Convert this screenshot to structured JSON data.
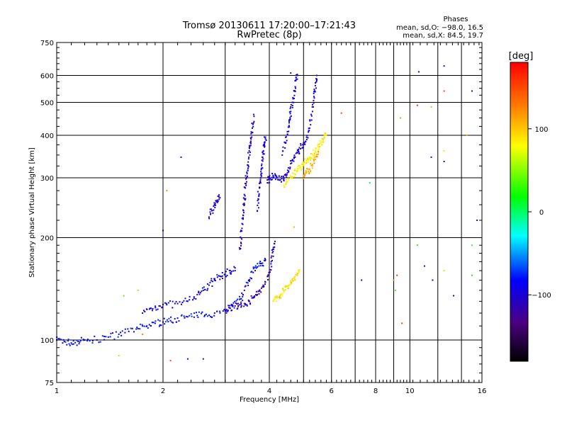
{
  "chart_data": {
    "type": "scatter",
    "title": "Tromsø 20130611 17:20:00–17:21:43",
    "subtitle": "RwPretec (8p)",
    "xlabel": "Frequency [MHz]",
    "ylabel": "Stationary phase Virtual Height [km]",
    "x_scale": "log",
    "y_scale": "log",
    "xlim": [
      1,
      16
    ],
    "ylim": [
      75,
      750
    ],
    "grid": true,
    "x_ticks": [
      "1",
      "2",
      "4",
      "6",
      "8",
      "10",
      "16"
    ],
    "y_ticks": [
      "75",
      "100",
      "200",
      "300",
      "400",
      "500",
      "600",
      "750"
    ],
    "phases": {
      "heading": "Phases",
      "line_o": "mean, sd,O: −98.0, 16.5",
      "line_x": "mean, sd,X:  84.5, 19.7"
    },
    "colorbar": {
      "label": "[deg]",
      "min": -180,
      "max": 180,
      "ticks": [
        "100",
        "0",
        "−100"
      ]
    },
    "traces": [
      {
        "phase": -85,
        "points": [
          [
            1.0,
            100
          ],
          [
            1.05,
            99
          ],
          [
            1.1,
            98
          ],
          [
            1.15,
            99
          ],
          [
            1.2,
            100
          ],
          [
            1.3,
            100
          ],
          [
            1.4,
            102
          ],
          [
            1.5,
            104
          ],
          [
            1.6,
            106
          ],
          [
            1.7,
            108
          ],
          [
            1.8,
            110
          ],
          [
            1.9,
            112
          ],
          [
            2.0,
            113
          ],
          [
            2.1,
            114
          ],
          [
            2.2,
            116
          ],
          [
            2.35,
            117
          ],
          [
            2.5,
            118
          ],
          [
            2.65,
            119
          ],
          [
            2.8,
            120
          ],
          [
            3.0,
            122
          ],
          [
            3.15,
            126
          ],
          [
            3.3,
            132
          ],
          [
            3.4,
            140
          ],
          [
            3.5,
            150
          ],
          [
            3.6,
            158
          ],
          [
            3.7,
            164
          ],
          [
            3.8,
            168
          ],
          [
            3.9,
            172
          ]
        ]
      },
      {
        "phase": -90,
        "points": [
          [
            1.75,
            120
          ],
          [
            1.85,
            124
          ],
          [
            1.95,
            126
          ],
          [
            2.05,
            127
          ],
          [
            2.2,
            128
          ],
          [
            2.35,
            130
          ],
          [
            2.5,
            136
          ],
          [
            2.6,
            140
          ],
          [
            2.7,
            145
          ],
          [
            2.8,
            150
          ],
          [
            2.9,
            154
          ],
          [
            3.0,
            156
          ],
          [
            3.1,
            160
          ],
          [
            3.2,
            163
          ]
        ]
      },
      {
        "phase": -108,
        "points": [
          [
            3.0,
            122
          ],
          [
            3.1,
            124
          ],
          [
            3.2,
            126
          ],
          [
            3.3,
            127
          ],
          [
            3.4,
            128
          ],
          [
            3.5,
            130
          ],
          [
            3.6,
            133
          ],
          [
            3.7,
            136
          ],
          [
            3.8,
            142
          ],
          [
            3.9,
            148
          ],
          [
            4.0,
            158
          ],
          [
            4.05,
            170
          ],
          [
            4.1,
            182
          ],
          [
            4.15,
            195
          ]
        ]
      },
      {
        "phase": -105,
        "points": [
          [
            3.3,
            185
          ],
          [
            3.32,
            200
          ],
          [
            3.35,
            220
          ],
          [
            3.38,
            240
          ],
          [
            3.4,
            260
          ],
          [
            3.42,
            280
          ],
          [
            3.45,
            300
          ],
          [
            3.48,
            320
          ],
          [
            3.5,
            345
          ],
          [
            3.52,
            370
          ],
          [
            3.55,
            390
          ],
          [
            3.58,
            420
          ],
          [
            3.62,
            455
          ]
        ]
      },
      {
        "phase": -100,
        "points": [
          [
            3.7,
            240
          ],
          [
            3.72,
            260
          ],
          [
            3.75,
            280
          ],
          [
            3.78,
            300
          ],
          [
            3.8,
            320
          ],
          [
            3.82,
            345
          ],
          [
            3.85,
            360
          ],
          [
            3.88,
            380
          ],
          [
            3.9,
            395
          ]
        ]
      },
      {
        "phase": -98,
        "points": [
          [
            3.95,
            290
          ],
          [
            4.0,
            300
          ],
          [
            4.1,
            305
          ],
          [
            4.2,
            300
          ],
          [
            4.3,
            296
          ],
          [
            4.4,
            300
          ],
          [
            4.5,
            310
          ],
          [
            4.6,
            330
          ],
          [
            4.7,
            345
          ],
          [
            4.8,
            355
          ],
          [
            4.9,
            365
          ],
          [
            5.0,
            380
          ],
          [
            5.1,
            395
          ],
          [
            5.2,
            420
          ],
          [
            5.3,
            470
          ],
          [
            5.35,
            520
          ],
          [
            5.4,
            560
          ],
          [
            5.45,
            600
          ]
        ]
      },
      {
        "phase": -95,
        "points": [
          [
            4.35,
            350
          ],
          [
            4.45,
            380
          ],
          [
            4.5,
            410
          ],
          [
            4.55,
            440
          ],
          [
            4.6,
            470
          ],
          [
            4.65,
            500
          ],
          [
            4.7,
            540
          ],
          [
            4.75,
            580
          ],
          [
            4.8,
            600
          ]
        ]
      },
      {
        "phase": -102,
        "points": [
          [
            2.7,
            230
          ],
          [
            2.75,
            240
          ],
          [
            2.8,
            250
          ],
          [
            2.85,
            258
          ],
          [
            2.9,
            262
          ]
        ]
      },
      {
        "phase": 85,
        "points": [
          [
            4.4,
            285
          ],
          [
            4.5,
            292
          ],
          [
            4.6,
            300
          ],
          [
            4.7,
            308
          ],
          [
            4.8,
            315
          ],
          [
            4.9,
            322
          ],
          [
            5.0,
            330
          ],
          [
            5.1,
            338
          ],
          [
            5.2,
            345
          ],
          [
            5.3,
            352
          ],
          [
            5.4,
            360
          ],
          [
            5.5,
            370
          ],
          [
            5.6,
            380
          ],
          [
            5.7,
            390
          ],
          [
            5.8,
            400
          ]
        ]
      },
      {
        "phase": 90,
        "points": [
          [
            4.1,
            130
          ],
          [
            4.2,
            133
          ],
          [
            4.3,
            136
          ],
          [
            4.4,
            140
          ],
          [
            4.5,
            144
          ],
          [
            4.6,
            148
          ],
          [
            4.7,
            152
          ],
          [
            4.8,
            156
          ],
          [
            4.85,
            160
          ]
        ]
      },
      {
        "phase": 110,
        "points": [
          [
            5.0,
            305
          ],
          [
            5.1,
            310
          ],
          [
            5.2,
            318
          ],
          [
            5.3,
            328
          ],
          [
            5.4,
            340
          ],
          [
            5.5,
            352
          ]
        ]
      }
    ],
    "scattered": [
      {
        "x": 4.6,
        "y": 610,
        "phase": -110
      },
      {
        "x": 10.6,
        "y": 615,
        "phase": -110
      },
      {
        "x": 12.5,
        "y": 640,
        "phase": -120
      },
      {
        "x": 12.5,
        "y": 540,
        "phase": 150
      },
      {
        "x": 15.0,
        "y": 540,
        "phase": -120
      },
      {
        "x": 10.5,
        "y": 490,
        "phase": 160
      },
      {
        "x": 11.5,
        "y": 485,
        "phase": 40
      },
      {
        "x": 9.4,
        "y": 450,
        "phase": 120
      },
      {
        "x": 6.4,
        "y": 465,
        "phase": 150
      },
      {
        "x": 14.5,
        "y": 400,
        "phase": 110
      },
      {
        "x": 12.5,
        "y": 360,
        "phase": 90
      },
      {
        "x": 11.5,
        "y": 345,
        "phase": -110
      },
      {
        "x": 12.5,
        "y": 335,
        "phase": -120
      },
      {
        "x": 2.25,
        "y": 345,
        "phase": -110
      },
      {
        "x": 7.7,
        "y": 290,
        "phase": 10
      },
      {
        "x": 2.05,
        "y": 275,
        "phase": 120
      },
      {
        "x": 15.5,
        "y": 225,
        "phase": -120
      },
      {
        "x": 2.0,
        "y": 210,
        "phase": -110
      },
      {
        "x": 4.7,
        "y": 215,
        "phase": 110
      },
      {
        "x": 10.5,
        "y": 190,
        "phase": 20
      },
      {
        "x": 15.0,
        "y": 190,
        "phase": 30
      },
      {
        "x": 11.0,
        "y": 165,
        "phase": -100
      },
      {
        "x": 12.5,
        "y": 160,
        "phase": 60
      },
      {
        "x": 9.2,
        "y": 155,
        "phase": 160
      },
      {
        "x": 7.3,
        "y": 150,
        "phase": -120
      },
      {
        "x": 9.0,
        "y": 150,
        "phase": 120
      },
      {
        "x": 15.0,
        "y": 155,
        "phase": 20
      },
      {
        "x": 11.6,
        "y": 150,
        "phase": -90
      },
      {
        "x": 9.1,
        "y": 140,
        "phase": 30
      },
      {
        "x": 13.3,
        "y": 135,
        "phase": -140
      },
      {
        "x": 1.7,
        "y": 140,
        "phase": 50
      },
      {
        "x": 1.55,
        "y": 135,
        "phase": 40
      },
      {
        "x": 9.5,
        "y": 112,
        "phase": 160
      },
      {
        "x": 1.75,
        "y": 104,
        "phase": 130
      },
      {
        "x": 1.5,
        "y": 90,
        "phase": 100
      },
      {
        "x": 2.1,
        "y": 87,
        "phase": 150
      },
      {
        "x": 2.35,
        "y": 88,
        "phase": -100
      },
      {
        "x": 2.6,
        "y": 88,
        "phase": -120
      }
    ]
  }
}
